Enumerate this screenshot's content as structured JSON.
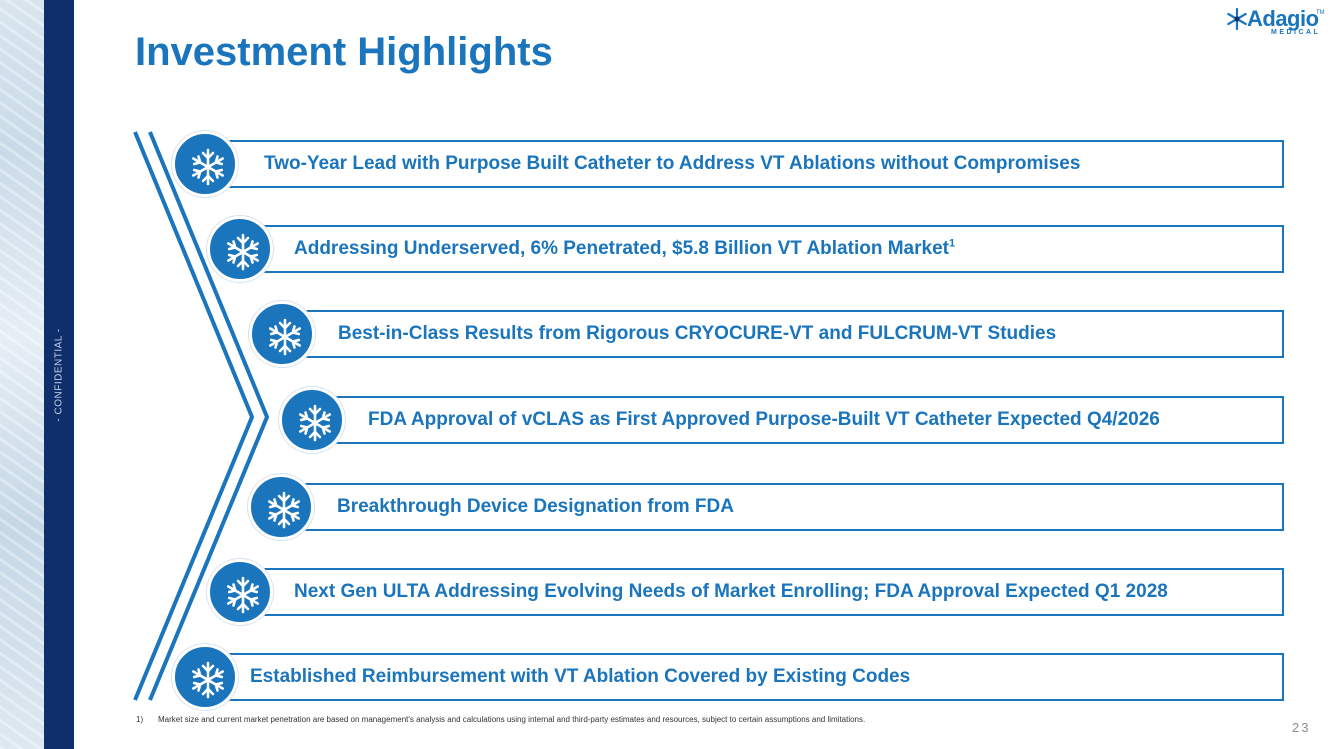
{
  "sidebar": {
    "confidential_label": "- CONFIDENTIAL -"
  },
  "header": {
    "title": "Investment Highlights",
    "logo": {
      "word": "Adagio",
      "sub": "MEDICAL",
      "tm": "TM",
      "icon": "snowflake-star-icon"
    }
  },
  "highlights": [
    {
      "text": "Two-Year Lead with Purpose Built Catheter to Address  VT Ablations without Compromises",
      "sup": "",
      "icon": "snowflake-icon"
    },
    {
      "text": "Addressing Underserved, 6% Penetrated, $5.8 Billion VT Ablation Market",
      "sup": "1",
      "icon": "snowflake-icon"
    },
    {
      "text": "Best-in-Class Results from Rigorous CRYOCURE-VT and  FULCRUM-VT  Studies",
      "sup": "",
      "icon": "snowflake-icon"
    },
    {
      "text": "FDA Approval of vCLAS as First Approved Purpose-Built VT Catheter Expected Q4/2026",
      "sup": "",
      "icon": "snowflake-icon"
    },
    {
      "text": "Breakthrough Device Designation from FDA",
      "sup": "",
      "icon": "snowflake-icon"
    },
    {
      "text": "Next Gen ULTA Addressing Evolving Needs of Market Enrolling; FDA Approval Expected Q1 2028",
      "sup": "",
      "icon": "snowflake-icon"
    },
    {
      "text": "Established Reimbursement with VT Ablation Covered by Existing Codes",
      "sup": "",
      "icon": "snowflake-icon"
    }
  ],
  "footnote": {
    "marker": "1)",
    "text": "Market size and current market penetration are based on management's analysis and calculations using internal and third-party estimates and resources, subject to certain assumptions and limitations."
  },
  "page_number": "23",
  "colors": {
    "brand_blue": "#1b75bc",
    "navy": "#0e2f6b",
    "background": "#ffffff"
  }
}
